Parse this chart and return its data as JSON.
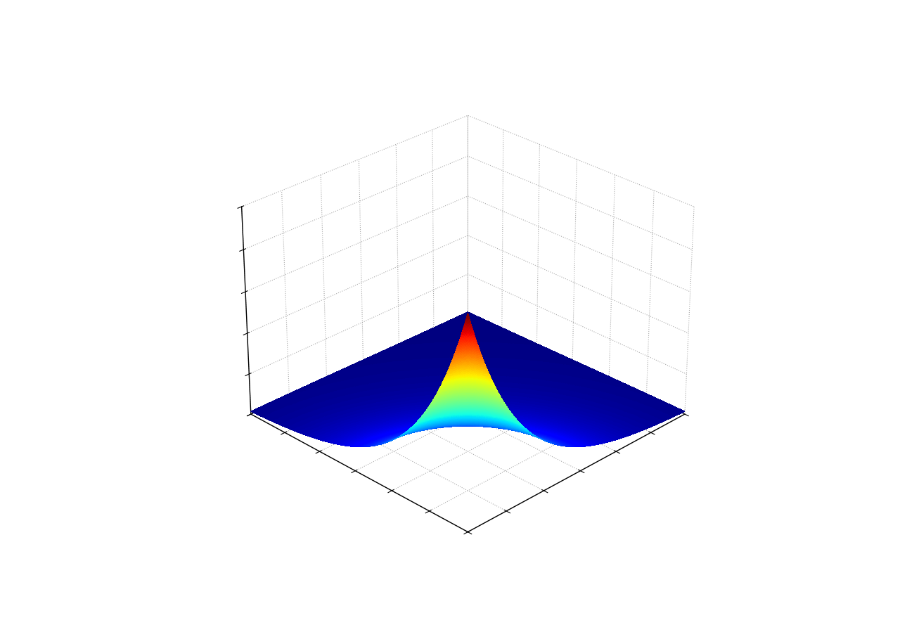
{
  "title": "",
  "colormap": "jet",
  "background_color": "#ffffff",
  "grid_linestyle": ":",
  "grid_color": "#aaaaaa",
  "n_points": 300,
  "x_range": [
    0,
    6
  ],
  "y_range": [
    0,
    6
  ],
  "peak_x": 0.0,
  "peak_y": 0.0,
  "sigma": 1.4,
  "elev": 28,
  "azim": -135,
  "alpha": 1.0
}
